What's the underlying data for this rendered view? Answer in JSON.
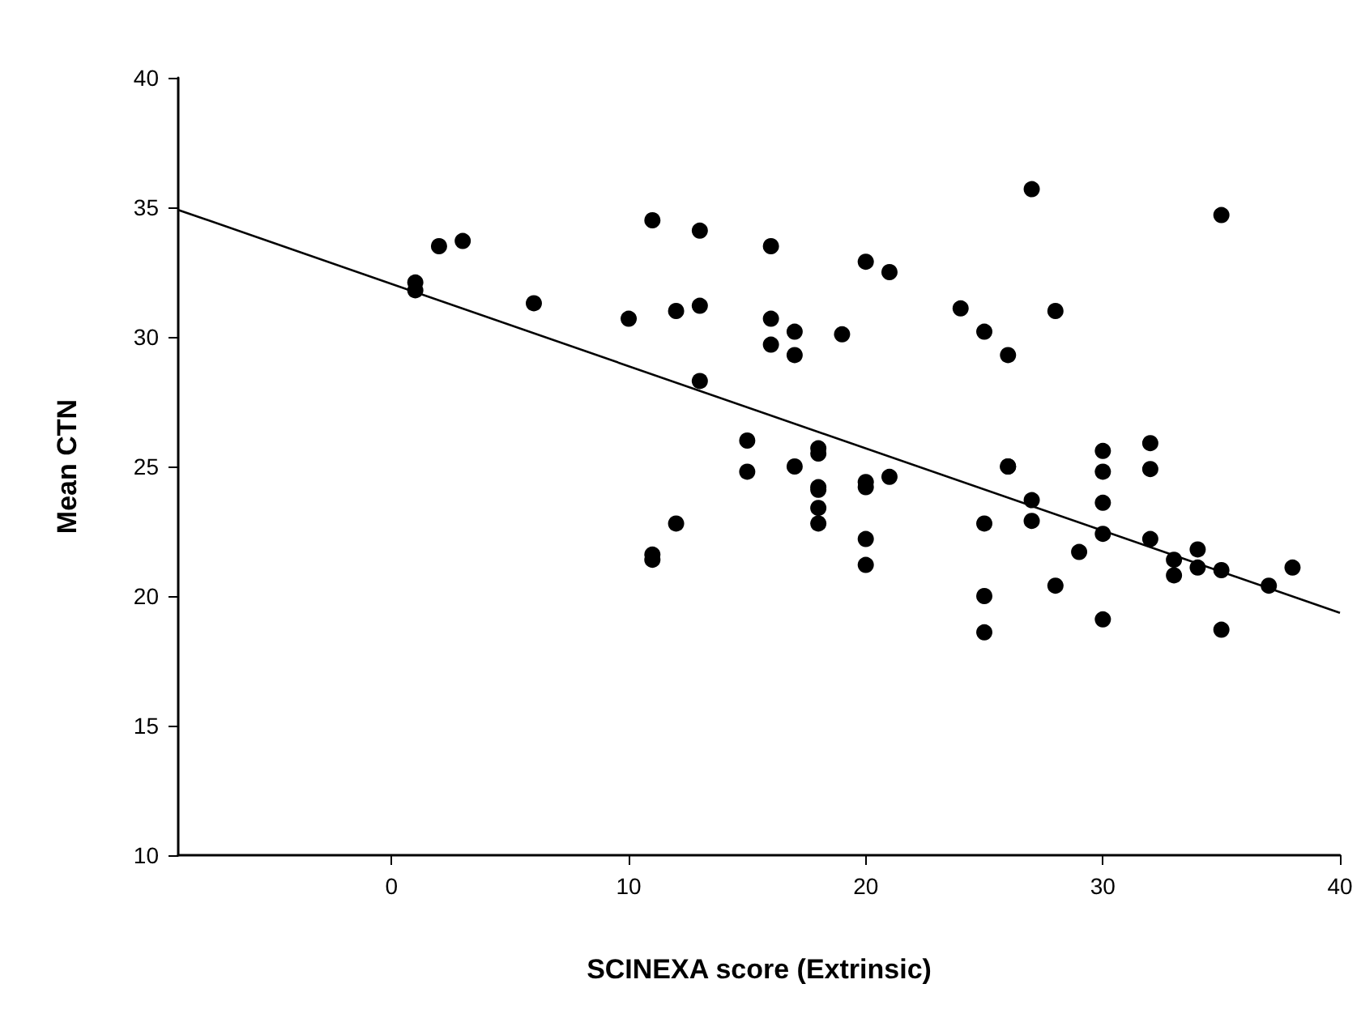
{
  "chart_data": {
    "type": "scatter",
    "xlabel": "SCINEXA score (Extrinsic)",
    "ylabel": "Mean CTN",
    "xlim": [
      -9,
      40
    ],
    "xticks": [
      0,
      10,
      20,
      30,
      40
    ],
    "ylim": [
      10,
      40
    ],
    "yticks": [
      10,
      15,
      20,
      25,
      30,
      35,
      40
    ],
    "grid": false,
    "marker": "circle",
    "series": [
      {
        "color": "#000000",
        "x": [
          1,
          1,
          2,
          3,
          6,
          10,
          11,
          11,
          11,
          12,
          12,
          13,
          13,
          13,
          15,
          15,
          16,
          16,
          16,
          17,
          17,
          17,
          18,
          18,
          18,
          18,
          18,
          18,
          19,
          20,
          20,
          20,
          20,
          20,
          21,
          21,
          24,
          25,
          25,
          25,
          25,
          26,
          26,
          26,
          27,
          27,
          27,
          28,
          28,
          29,
          30,
          30,
          30,
          30,
          30,
          32,
          32,
          32,
          33,
          33,
          34,
          34,
          35,
          35,
          35,
          37,
          38
        ],
        "values": [
          32.1,
          31.8,
          33.5,
          33.7,
          31.3,
          30.7,
          34.5,
          21.6,
          21.4,
          31.0,
          22.8,
          34.1,
          31.2,
          28.3,
          26.0,
          24.8,
          33.5,
          30.7,
          29.7,
          30.2,
          29.3,
          25.0,
          25.7,
          25.5,
          24.1,
          23.4,
          22.8,
          24.2,
          30.1,
          32.9,
          24.4,
          24.2,
          22.2,
          21.2,
          32.5,
          24.6,
          31.1,
          30.2,
          22.8,
          20.0,
          18.6,
          29.3,
          25.0,
          25.0,
          35.7,
          23.7,
          22.9,
          31.0,
          20.4,
          21.7,
          25.6,
          24.8,
          23.6,
          22.4,
          19.1,
          25.9,
          24.9,
          22.2,
          21.4,
          20.8,
          21.8,
          21.1,
          34.7,
          21.0,
          18.7,
          20.4,
          21.1
        ]
      },
      {
        "type": "line",
        "color": "#000000",
        "line_style": "solid",
        "marker": "none",
        "x": [
          -9,
          40
        ],
        "values": [
          34.9,
          19.35
        ]
      }
    ]
  }
}
